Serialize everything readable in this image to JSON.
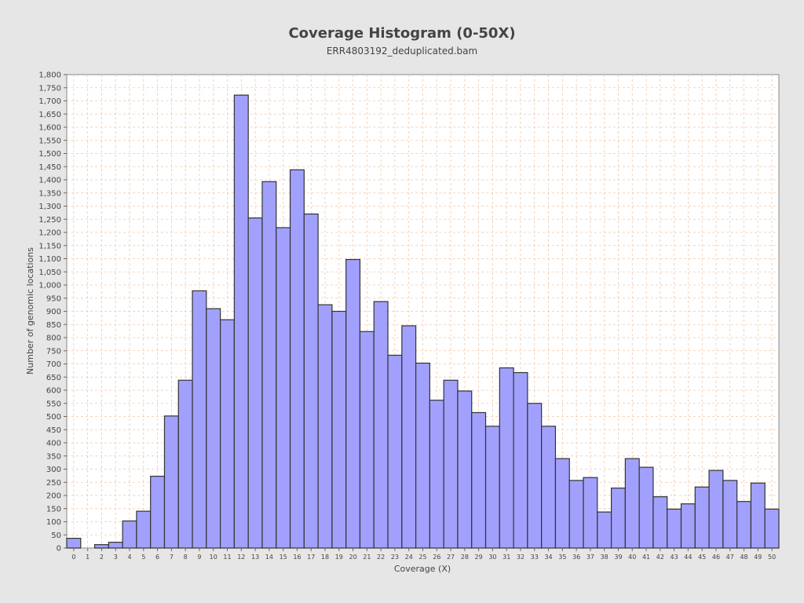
{
  "chart_data": {
    "type": "bar",
    "title": "Coverage Histogram (0-50X)",
    "subtitle": "ERR4803192_deduplicated.bam",
    "xlabel": "Coverage (X)",
    "ylabel": "Number of genomic locations",
    "ylim": [
      0,
      1800
    ],
    "ytick_step": 50,
    "grid": true,
    "categories": [
      "0",
      "1",
      "2",
      "3",
      "4",
      "5",
      "6",
      "7",
      "8",
      "9",
      "10",
      "11",
      "12",
      "13",
      "14",
      "15",
      "16",
      "17",
      "18",
      "19",
      "20",
      "21",
      "22",
      "23",
      "24",
      "25",
      "26",
      "27",
      "28",
      "29",
      "30",
      "31",
      "32",
      "33",
      "34",
      "35",
      "36",
      "37",
      "38",
      "39",
      "40",
      "41",
      "42",
      "43",
      "44",
      "45",
      "46",
      "47",
      "48",
      "49",
      "50"
    ],
    "values": [
      37,
      0,
      13,
      22,
      103,
      140,
      273,
      502,
      638,
      978,
      910,
      868,
      1722,
      1255,
      1393,
      1218,
      1438,
      1270,
      925,
      900,
      1097,
      823,
      937,
      733,
      845,
      703,
      562,
      638,
      597,
      515,
      463,
      685,
      667,
      550,
      463,
      340,
      257,
      268,
      137,
      228,
      340,
      307,
      195,
      148,
      168,
      232,
      295,
      257,
      177,
      247,
      148
    ]
  },
  "colors": {
    "background": "#e6e6e6",
    "plot_background": "#ffffff",
    "bar_fill": "#a1a1fd",
    "bar_stroke": "#333333",
    "grid": "#f0c8a8"
  }
}
